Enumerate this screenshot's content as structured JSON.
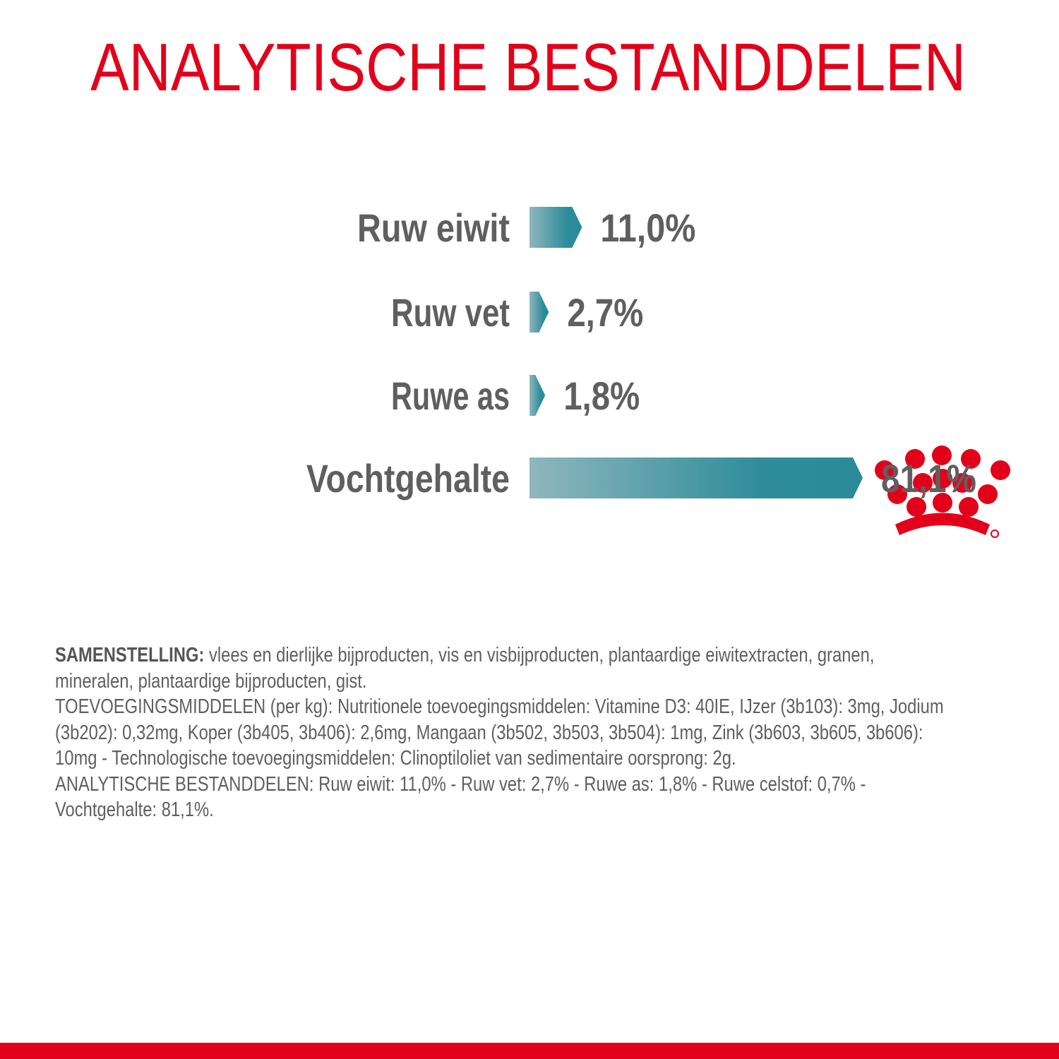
{
  "chart_data": {
    "type": "bar",
    "orientation": "horizontal",
    "title": "ANALYTISCHE BESTANDDELEN",
    "categories": [
      "Ruw eiwit",
      "Ruw vet",
      "Ruwe as",
      "Vochtgehalte"
    ],
    "values": [
      11.0,
      2.7,
      1.8,
      81.1
    ],
    "value_labels": [
      "11,0%",
      "2,7%",
      "1,8%",
      "81,1%"
    ],
    "color": "#2b8c9a"
  },
  "composition": {
    "label": "SAMENSTELLING:",
    "text": "vlees en dierlijke bijproducten, vis en visbijproducten, plantaardige eiwitextracten, granen, mineralen, plantaardige bijproducten, gist.",
    "additives": "TOEVOEGINGSMIDDELEN (per kg): Nutritionele toevoegingsmiddelen: Vitamine D3: 40IE, IJzer (3b103): 3mg, Jodium (3b202): 0,32mg, Koper (3b405, 3b406): 2,6mg, Mangaan (3b502, 3b503, 3b504): 1mg, Zink (3b603, 3b605, 3b606): 10mg - Technologische toevoegingsmiddelen: Clinoptiloliet van sedimentaire oorsprong: 2g.",
    "analysis": "ANALYTISCHE BESTANDDELEN: Ruw eiwit: 11,0% - Ruw vet: 2,7% - Ruwe as: 1,8% - Ruwe celstof: 0,7% - Vochtgehalte: 81,1%."
  }
}
